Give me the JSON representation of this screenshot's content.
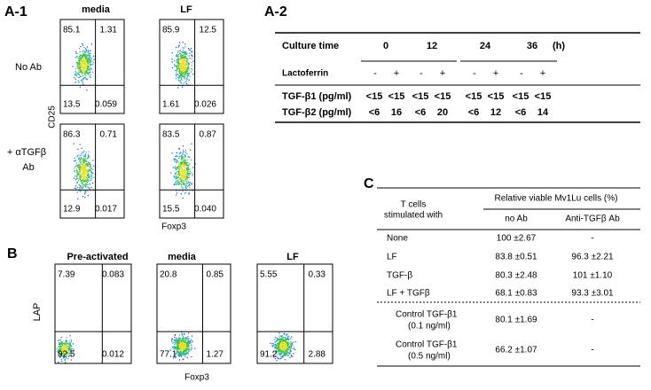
{
  "panel_a1": {
    "label": "A-1",
    "columns": [
      "media",
      "LF"
    ],
    "rows": [
      [
        "No Ab"
      ],
      [
        "+ αTGFβ",
        "Ab"
      ]
    ],
    "y_axis": "CD25",
    "x_axis": "Foxp3",
    "plots": [
      {
        "quadrants": [
          "85.1",
          "1.31",
          "13.5",
          "0.059"
        ]
      },
      {
        "quadrants": [
          "85.9",
          "12.5",
          "1.61",
          "0.026"
        ]
      },
      {
        "quadrants": [
          "86.3",
          "0.71",
          "12.9",
          "0.017"
        ]
      },
      {
        "quadrants": [
          "83.5",
          "0.87",
          "15.5",
          "0.040"
        ]
      }
    ]
  },
  "panel_a2": {
    "label": "A-2",
    "culture_time_label": "Culture  time",
    "times": [
      "0",
      "12",
      "24",
      "36"
    ],
    "unit": "(h)",
    "lactoferrin_label": "Lactoferrin",
    "lactoferrin_signs": [
      "-",
      "+"
    ],
    "rows": [
      {
        "name": "TGF-β1 (pg/ml)",
        "values": [
          "<15",
          "<15",
          "<15",
          "<15",
          "<15",
          "<15",
          "<15",
          "<15"
        ]
      },
      {
        "name": "TGF-β2 (pg/ml)",
        "values": [
          "<6",
          "16",
          "<6",
          "20",
          "<6",
          "12",
          "<6",
          "14"
        ]
      }
    ]
  },
  "panel_b": {
    "label": "B",
    "columns": [
      "Pre-activated",
      "media",
      "LF"
    ],
    "y_axis": "LAP",
    "x_axis": "Foxp3",
    "plots": [
      {
        "quadrants": [
          "7.39",
          "0.083",
          "92.5",
          "0.012"
        ]
      },
      {
        "quadrants": [
          "20.8",
          "0.85",
          "77.1",
          "1.27"
        ]
      },
      {
        "quadrants": [
          "5.55",
          "0.33",
          "91.2",
          "2.88"
        ]
      }
    ]
  },
  "panel_c": {
    "label": "C",
    "header_left": [
      "T cells",
      "stimulated with"
    ],
    "header_group": "Relative viable Mv1Lu cells (%)",
    "columns": [
      "no Ab",
      "Anti-TGFβ Ab"
    ],
    "rows": [
      {
        "name": [
          "None"
        ],
        "values": [
          "100 ±2.67",
          "-"
        ]
      },
      {
        "name": [
          "LF"
        ],
        "values": [
          "83.8 ±0.51",
          "96.3 ±2.21"
        ]
      },
      {
        "name": [
          "TGF-β"
        ],
        "values": [
          "80.3 ±2.48",
          "101 ±1.10"
        ]
      },
      {
        "name": [
          "LF + TGFβ"
        ],
        "values": [
          "68.1 ±0.83",
          "93.3 ±3.01"
        ]
      },
      {
        "name": [
          "Control TGF-β1",
          "(0.1 ng/ml)"
        ],
        "values": [
          "80.1 ±1.69",
          "-"
        ]
      },
      {
        "name": [
          "Control TGF-β1",
          "(0.5 ng/ml)"
        ],
        "values": [
          "66.2 ±1.07",
          "-"
        ]
      }
    ]
  }
}
